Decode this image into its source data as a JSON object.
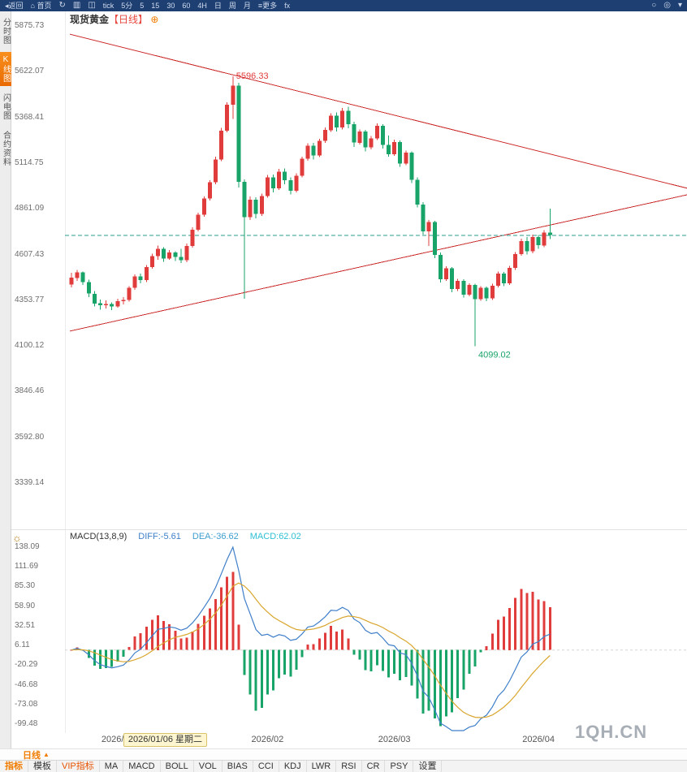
{
  "toolbar": {
    "items": [
      {
        "name": "back-button",
        "label": "◂返回"
      },
      {
        "name": "home-button",
        "label": "⌂ 首页"
      },
      {
        "name": "refresh-icon",
        "glyph": "↻",
        "icon": true
      },
      {
        "name": "bar-chart-icon",
        "glyph": "▥",
        "icon": true
      },
      {
        "name": "candlestick-icon",
        "glyph": "◫",
        "icon": true
      },
      {
        "name": "interval-tick-button",
        "label": "tick"
      },
      {
        "name": "interval-5min-button",
        "label": "5分"
      },
      {
        "name": "interval-5-button",
        "label": "5"
      },
      {
        "name": "interval-15-button",
        "label": "15"
      },
      {
        "name": "interval-30-button",
        "label": "30"
      },
      {
        "name": "interval-60-button",
        "label": "60"
      },
      {
        "name": "interval-4h-button",
        "label": "4H"
      },
      {
        "name": "interval-day-button",
        "label": "日"
      },
      {
        "name": "interval-week-button",
        "label": "周"
      },
      {
        "name": "interval-month-button",
        "label": "月"
      },
      {
        "name": "more-button",
        "label": "≡更多"
      },
      {
        "name": "fx-button",
        "label": "fx"
      },
      {
        "name": "search-icon",
        "glyph": "○",
        "icon": true,
        "right": true
      },
      {
        "name": "settings-icon",
        "glyph": "◎",
        "icon": true
      },
      {
        "name": "chevron-down-icon",
        "glyph": "▾",
        "icon": true
      }
    ]
  },
  "sidebar": {
    "items": [
      {
        "name": "sidebar-item-time-chart",
        "label": "分时图",
        "active": false
      },
      {
        "name": "sidebar-item-kline-chart",
        "label": "K线图",
        "active": true
      },
      {
        "name": "sidebar-item-lightning-chart",
        "label": "闪电图",
        "active": false
      },
      {
        "name": "sidebar-item-contract-info",
        "label": "合约资料",
        "active": false
      }
    ]
  },
  "chart_header": {
    "symbol": "现货黄金",
    "period_tag": "【日线】",
    "add_icon": "⊕"
  },
  "macd_header": {
    "title": "MACD(13,8,9)",
    "diff_label": "DIFF:-5.61",
    "dea_label": "DEA:-36.62",
    "macd_label": "MACD:62.02"
  },
  "bottom": {
    "period_label": "日线",
    "collapse_arrow": "▲",
    "tabs": [
      {
        "name": "tab-indicator",
        "label": "指标",
        "style": "active"
      },
      {
        "name": "tab-template",
        "label": "模板",
        "style": "plain"
      },
      {
        "name": "tab-vip-indicator",
        "label": "VIP指标",
        "style": "vip"
      },
      {
        "name": "tab-ma",
        "label": "MA",
        "style": "plain"
      },
      {
        "name": "tab-macd",
        "label": "MACD",
        "style": "plain"
      },
      {
        "name": "tab-boll",
        "label": "BOLL",
        "style": "plain"
      },
      {
        "name": "tab-vol",
        "label": "VOL",
        "style": "plain"
      },
      {
        "name": "tab-bias",
        "label": "BIAS",
        "style": "plain"
      },
      {
        "name": "tab-cci",
        "label": "CCI",
        "style": "plain"
      },
      {
        "name": "tab-kdj",
        "label": "KDJ",
        "style": "plain"
      },
      {
        "name": "tab-lwr",
        "label": "LWR",
        "style": "plain"
      },
      {
        "name": "tab-rsi",
        "label": "RSI",
        "style": "plain"
      },
      {
        "name": "tab-cr",
        "label": "CR",
        "style": "plain"
      },
      {
        "name": "tab-psy",
        "label": "PSY",
        "style": "plain"
      },
      {
        "name": "tab-settings",
        "label": "设置",
        "style": "plain"
      }
    ]
  },
  "watermark": "1QH.CN",
  "colors": {
    "up": "#e03c3c",
    "down": "#18a368",
    "trendline": "#cc2b2b",
    "price_line": "#2a9e8f",
    "diff_line": "#3f7fc9",
    "dea_line": "#d9a62e",
    "accent": "#f07c00",
    "toolbar_bg": "#1d3f72"
  },
  "chart_data": {
    "type": "candlestick",
    "title": "现货黄金 日线 (Spot Gold, Daily)",
    "price_axis": {
      "labels": [
        "5875.73",
        "5622.07",
        "5368.41",
        "5114.75",
        "4861.09",
        "4607.43",
        "4353.77",
        "4100.12",
        "3846.46",
        "3592.80",
        "3339.14"
      ]
    },
    "macd_axis": {
      "labels": [
        "138.09",
        "111.69",
        "85.30",
        "58.90",
        "32.51",
        "6.11",
        "-20.29",
        "-46.68",
        "-73.08",
        "-99.48"
      ]
    },
    "x_axis": {
      "months": [
        {
          "label": "2026/01",
          "index": 8
        },
        {
          "label": "2026/02",
          "index": 34
        },
        {
          "label": "2026/03",
          "index": 56
        },
        {
          "label": "2026/04",
          "index": 81
        }
      ],
      "crosshair_date": "2026/01/06 星期二",
      "crosshair_index": 9
    },
    "current_price_line": 4713,
    "annotations": [
      {
        "text": "5596.33",
        "price": 5596.33,
        "index": 28,
        "color": "#e03c3c",
        "pos": "above"
      },
      {
        "text": "4099.02",
        "price": 4099.02,
        "index": 70,
        "color": "#18a368",
        "pos": "below"
      }
    ],
    "trendlines": [
      {
        "i1": -0.3,
        "p1": 5830,
        "i2": 106.8,
        "p2": 4975
      },
      {
        "i1": -0.3,
        "p1": 4182,
        "i2": 106.8,
        "p2": 4939
      }
    ],
    "macd": {
      "fast": 8,
      "slow": 13,
      "signal": 9,
      "display_scale_max": 138.09,
      "diff": -5.61,
      "dea": -36.62,
      "macd": 62.02
    },
    "candles": [
      [
        4440,
        4505,
        4425,
        4478
      ],
      [
        4478,
        4522,
        4460,
        4508
      ],
      [
        4508,
        4512,
        4438,
        4455
      ],
      [
        4455,
        4468,
        4372,
        4390
      ],
      [
        4390,
        4405,
        4318,
        4336
      ],
      [
        4336,
        4358,
        4302,
        4326
      ],
      [
        4326,
        4352,
        4308,
        4332
      ],
      [
        4332,
        4342,
        4298,
        4320
      ],
      [
        4320,
        4362,
        4312,
        4348
      ],
      [
        4348,
        4372,
        4330,
        4355
      ],
      [
        4355,
        4432,
        4345,
        4422
      ],
      [
        4422,
        4498,
        4412,
        4486
      ],
      [
        4486,
        4502,
        4448,
        4465
      ],
      [
        4465,
        4548,
        4455,
        4538
      ],
      [
        4538,
        4612,
        4528,
        4598
      ],
      [
        4598,
        4658,
        4578,
        4640
      ],
      [
        4640,
        4648,
        4568,
        4586
      ],
      [
        4586,
        4632,
        4578,
        4618
      ],
      [
        4618,
        4626,
        4572,
        4595
      ],
      [
        4595,
        4640,
        4560,
        4575
      ],
      [
        4575,
        4668,
        4565,
        4655
      ],
      [
        4655,
        4758,
        4645,
        4745
      ],
      [
        4745,
        4840,
        4735,
        4828
      ],
      [
        4828,
        4930,
        4818,
        4918
      ],
      [
        4918,
        5020,
        4908,
        5008
      ],
      [
        5008,
        5150,
        4998,
        5135
      ],
      [
        5135,
        5310,
        5125,
        5295
      ],
      [
        5295,
        5452,
        5285,
        5438
      ],
      [
        5438,
        5596.33,
        5360,
        5545
      ],
      [
        5545,
        5560,
        4980,
        5010
      ],
      [
        5010,
        5025,
        4362,
        4815
      ],
      [
        4815,
        4930,
        4800,
        4912
      ],
      [
        4912,
        4925,
        4808,
        4832
      ],
      [
        4832,
        4945,
        4822,
        4932
      ],
      [
        4932,
        5048,
        4922,
        5035
      ],
      [
        5035,
        5052,
        4952,
        4975
      ],
      [
        4975,
        5082,
        4965,
        5068
      ],
      [
        5068,
        5085,
        4998,
        5020
      ],
      [
        5020,
        5035,
        4940,
        4962
      ],
      [
        4962,
        5058,
        4952,
        5045
      ],
      [
        5045,
        5150,
        5035,
        5138
      ],
      [
        5138,
        5225,
        5128,
        5212
      ],
      [
        5212,
        5228,
        5135,
        5158
      ],
      [
        5158,
        5250,
        5148,
        5238
      ],
      [
        5238,
        5312,
        5228,
        5298
      ],
      [
        5298,
        5392,
        5288,
        5378
      ],
      [
        5378,
        5395,
        5290,
        5312
      ],
      [
        5312,
        5420,
        5302,
        5405
      ],
      [
        5405,
        5428,
        5308,
        5330
      ],
      [
        5330,
        5345,
        5205,
        5228
      ],
      [
        5228,
        5302,
        5218,
        5290
      ],
      [
        5290,
        5298,
        5180,
        5202
      ],
      [
        5202,
        5265,
        5192,
        5252
      ],
      [
        5252,
        5335,
        5242,
        5322
      ],
      [
        5322,
        5330,
        5195,
        5215
      ],
      [
        5215,
        5268,
        5150,
        5165
      ],
      [
        5165,
        5245,
        5155,
        5232
      ],
      [
        5232,
        5240,
        5095,
        5112
      ],
      [
        5112,
        5185,
        5102,
        5172
      ],
      [
        5172,
        5180,
        5005,
        5022
      ],
      [
        5022,
        5035,
        4868,
        4885
      ],
      [
        4885,
        4898,
        4718,
        4735
      ],
      [
        4735,
        4800,
        4655,
        4788
      ],
      [
        4788,
        4795,
        4588,
        4605
      ],
      [
        4605,
        4618,
        4452,
        4470
      ],
      [
        4470,
        4542,
        4460,
        4530
      ],
      [
        4530,
        4538,
        4398,
        4415
      ],
      [
        4415,
        4472,
        4405,
        4462
      ],
      [
        4462,
        4470,
        4368,
        4385
      ],
      [
        4385,
        4448,
        4375,
        4438
      ],
      [
        4438,
        4445,
        4099.02,
        4360
      ],
      [
        4360,
        4432,
        4350,
        4422
      ],
      [
        4422,
        4430,
        4348,
        4365
      ],
      [
        4365,
        4445,
        4355,
        4435
      ],
      [
        4435,
        4512,
        4425,
        4502
      ],
      [
        4502,
        4510,
        4432,
        4448
      ],
      [
        4448,
        4545,
        4438,
        4532
      ],
      [
        4532,
        4622,
        4522,
        4610
      ],
      [
        4610,
        4695,
        4600,
        4682
      ],
      [
        4682,
        4705,
        4608,
        4625
      ],
      [
        4625,
        4718,
        4615,
        4705
      ],
      [
        4705,
        4715,
        4638,
        4658
      ],
      [
        4658,
        4742,
        4648,
        4730
      ],
      [
        4730,
        4862,
        4692,
        4716
      ]
    ]
  }
}
